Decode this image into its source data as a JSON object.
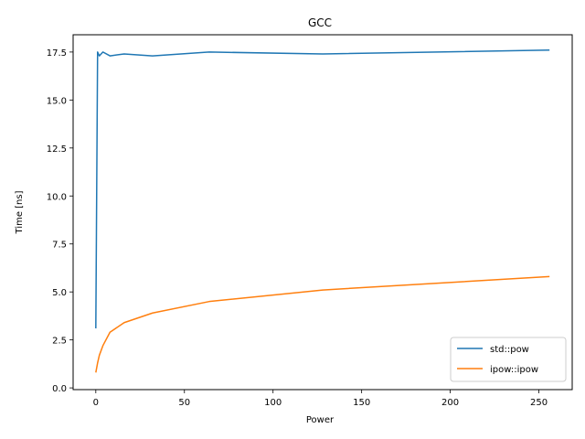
{
  "chart_data": {
    "type": "line",
    "title": "GCC",
    "xlabel": "Power",
    "ylabel": "Time [ns]",
    "xlim": [
      -12.8,
      268.8
    ],
    "ylim": [
      -0.09,
      18.4
    ],
    "xticks": [
      0,
      50,
      100,
      150,
      200,
      250
    ],
    "yticks": [
      0.0,
      2.5,
      5.0,
      7.5,
      10.0,
      12.5,
      15.0,
      17.5
    ],
    "ytick_labels": [
      "0.0",
      "2.5",
      "5.0",
      "7.5",
      "10.0",
      "12.5",
      "15.0",
      "17.5"
    ],
    "xtick_labels": [
      "0",
      "50",
      "100",
      "150",
      "200",
      "250"
    ],
    "grid": false,
    "legend_position": "lower-right",
    "series": [
      {
        "name": "std::pow",
        "color": "#1f77b4",
        "x": [
          0,
          1,
          2,
          4,
          8,
          16,
          32,
          64,
          128,
          256
        ],
        "y": [
          3.1,
          17.5,
          17.3,
          17.5,
          17.3,
          17.4,
          17.3,
          17.5,
          17.4,
          17.6
        ]
      },
      {
        "name": "ipow::ipow",
        "color": "#ff7f0e",
        "x": [
          0,
          1,
          2,
          4,
          8,
          16,
          32,
          64,
          128,
          256
        ],
        "y": [
          0.8,
          1.3,
          1.7,
          2.2,
          2.9,
          3.4,
          3.9,
          4.5,
          5.1,
          5.8
        ]
      }
    ]
  }
}
